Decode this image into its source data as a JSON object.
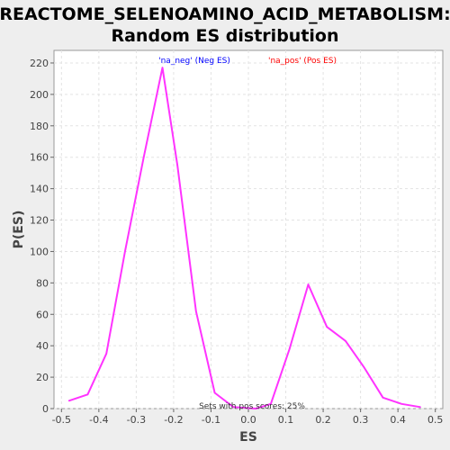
{
  "chart_data": {
    "type": "line",
    "title_line1": "REACTOME_SELENOAMINO_ACID_METABOLISM:",
    "title_line2": "Random ES distribution",
    "xlabel": "ES",
    "ylabel": "P(ES)",
    "xlim": [
      -0.52,
      0.52
    ],
    "ylim": [
      0,
      228
    ],
    "x_ticks": [
      "-0.5",
      "-0.4",
      "-0.3",
      "-0.2",
      "-0.1",
      "0.0",
      "0.1",
      "0.2",
      "0.3",
      "0.4",
      "0.5"
    ],
    "x_tick_values": [
      -0.5,
      -0.4,
      -0.3,
      -0.2,
      -0.1,
      0.0,
      0.1,
      0.2,
      0.3,
      0.4,
      0.5
    ],
    "y_ticks": [
      "0",
      "20",
      "40",
      "60",
      "80",
      "100",
      "120",
      "140",
      "160",
      "180",
      "200",
      "220"
    ],
    "y_tick_values": [
      0,
      20,
      40,
      60,
      80,
      100,
      120,
      140,
      160,
      180,
      200,
      220
    ],
    "grid": true,
    "legend_placement": "top",
    "legend": [
      {
        "label": "'na_neg' (Neg ES)",
        "color": "#0000ff"
      },
      {
        "label": "'na_pos' (Pos ES)",
        "color": "#ff0000"
      }
    ],
    "annotation": "Sets with pos scores: 25%",
    "series": [
      {
        "color": "#ff33ff",
        "x": [
          -0.48,
          -0.43,
          -0.38,
          -0.33,
          -0.28,
          -0.23,
          -0.19,
          -0.14,
          -0.09,
          -0.04,
          0.02,
          0.06,
          0.11,
          0.16,
          0.21,
          0.26,
          0.31,
          0.36,
          0.41,
          0.46
        ],
        "y": [
          5,
          9,
          35,
          100,
          160,
          217,
          155,
          62,
          10,
          1,
          0,
          3,
          38,
          79,
          52,
          43,
          26,
          7,
          3,
          1
        ]
      }
    ]
  }
}
